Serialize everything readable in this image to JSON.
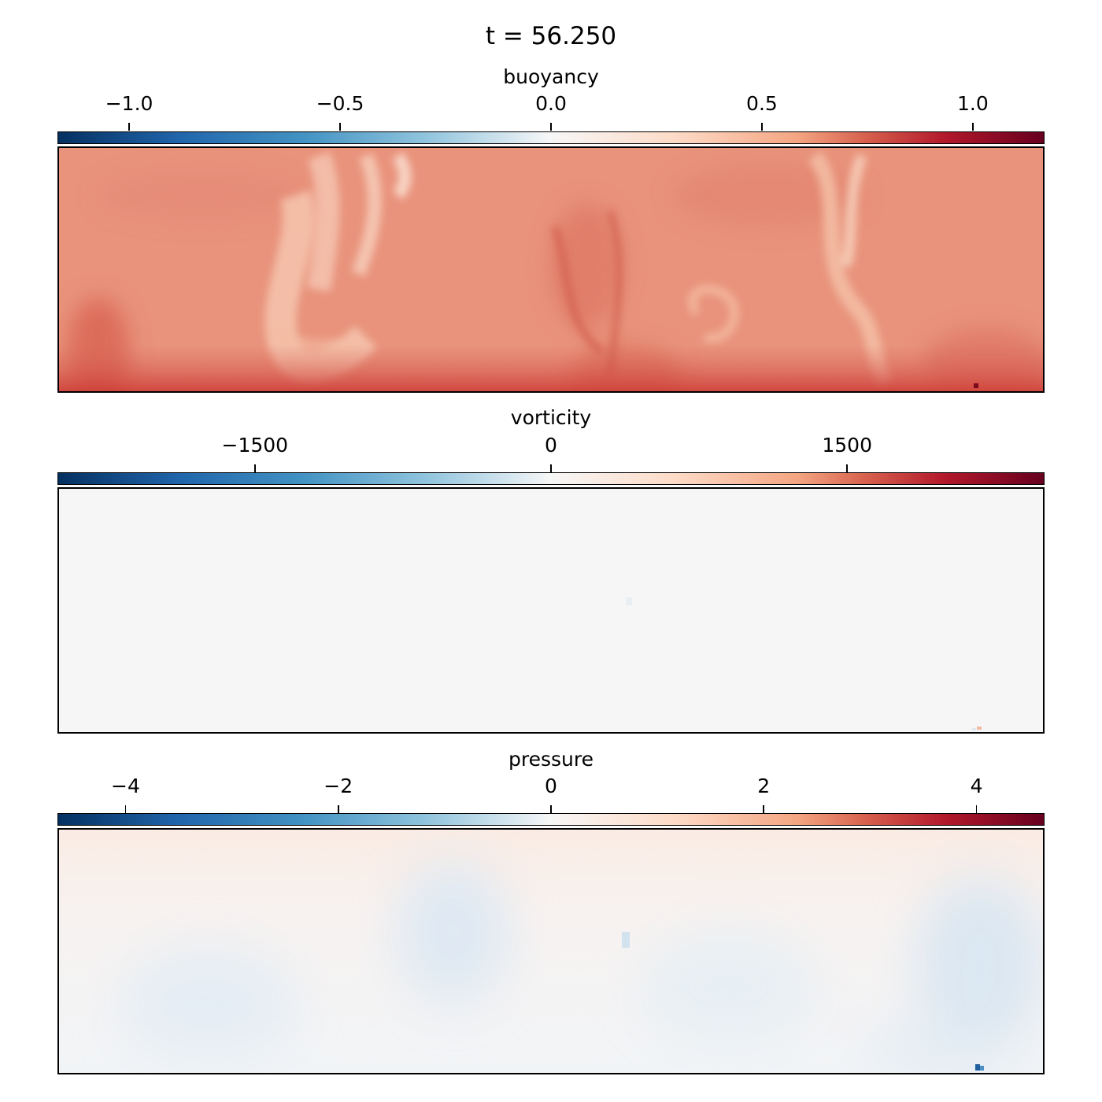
{
  "figure": {
    "title": "t = 56.250"
  },
  "colors": {
    "colormap": [
      "#053061",
      "#2166ac",
      "#4393c3",
      "#92c5de",
      "#f7f7f7",
      "#fddbc7",
      "#f4a582",
      "#d6604d",
      "#b2182b",
      "#67001f"
    ],
    "buoyancy_base": "#e8907a",
    "vorticity_base": "#f6f6f6",
    "pressure_base": "#f4f4f6"
  },
  "chart_data": [
    {
      "type": "heatmap",
      "title": "buoyancy",
      "colormap": "RdBu_r",
      "colorbar_position": "top",
      "clim": [
        -1.17,
        1.17
      ],
      "ticks": [
        -1.0,
        -0.5,
        0.0,
        0.5,
        1.0
      ],
      "tick_labels": [
        "−1.0",
        "−0.5",
        "0.0",
        "0.5",
        "1.0"
      ],
      "typical_value_range": [
        0.25,
        0.9
      ],
      "axes_ticks_visible": false
    },
    {
      "type": "heatmap",
      "title": "vorticity",
      "colormap": "RdBu_r",
      "colorbar_position": "top",
      "clim": [
        -2500,
        2500
      ],
      "ticks": [
        -1500,
        0,
        1500
      ],
      "tick_labels": [
        "−1500",
        "0",
        "1500"
      ],
      "typical_value_range": [
        -50,
        50
      ],
      "axes_ticks_visible": false
    },
    {
      "type": "heatmap",
      "title": "pressure",
      "colormap": "RdBu_r",
      "colorbar_position": "top",
      "clim": [
        -4.64,
        4.64
      ],
      "ticks": [
        -4,
        -2,
        0,
        2,
        4
      ],
      "tick_labels": [
        "−4",
        "−2",
        "0",
        "2",
        "4"
      ],
      "typical_value_range": [
        -0.5,
        0.4
      ],
      "axes_ticks_visible": false
    }
  ]
}
